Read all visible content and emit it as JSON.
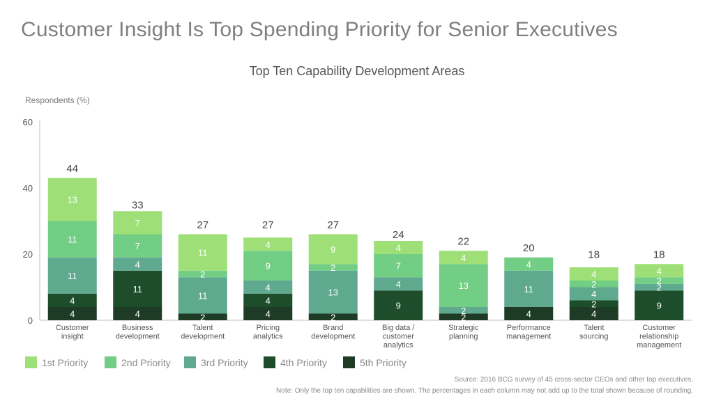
{
  "title": "Customer Insight Is Top Spending Priority for Senior Executives",
  "subtitle": "Top Ten Capability Development Areas",
  "colors": {
    "p1": "#9ee077",
    "p2": "#72cd85",
    "p3": "#5fa98f",
    "p4": "#1d4d2b",
    "p5": "#1e3b26"
  },
  "chart_data": {
    "type": "bar",
    "stacked": true,
    "title": "Top Ten Capability Development Areas",
    "ylabel": "Respondents (%)",
    "xlabel": "",
    "ylim": [
      0,
      60
    ],
    "yticks": [
      0,
      20,
      40,
      60
    ],
    "categories": [
      [
        "Customer",
        "insight"
      ],
      [
        "Business",
        "development"
      ],
      [
        "Talent",
        "development"
      ],
      [
        "Pricing",
        "analytics"
      ],
      [
        "Brand",
        "development"
      ],
      [
        "Big data /",
        "customer",
        "analytics"
      ],
      [
        "Strategic",
        "planning"
      ],
      [
        "Performance",
        "management"
      ],
      [
        "Talent",
        "sourcing"
      ],
      [
        "Customer",
        "relationship",
        "management"
      ]
    ],
    "totals": [
      44,
      33,
      27,
      27,
      27,
      24,
      22,
      20,
      18,
      18
    ],
    "series": [
      {
        "name": "5th Priority",
        "key": "p5",
        "values": [
          4,
          4,
          2,
          4,
          2,
          null,
          2,
          4,
          4,
          null
        ]
      },
      {
        "name": "4th Priority",
        "key": "p4",
        "values": [
          4,
          11,
          null,
          4,
          null,
          9,
          null,
          null,
          2,
          9
        ]
      },
      {
        "name": "3rd Priority",
        "key": "p3",
        "values": [
          11,
          4,
          11,
          4,
          13,
          4,
          2,
          11,
          4,
          2
        ]
      },
      {
        "name": "2nd Priority",
        "key": "p2",
        "values": [
          11,
          7,
          2,
          9,
          2,
          7,
          13,
          4,
          2,
          2
        ]
      },
      {
        "name": "1st Priority",
        "key": "p1",
        "values": [
          13,
          7,
          11,
          4,
          9,
          4,
          4,
          null,
          4,
          4
        ]
      }
    ],
    "legend": [
      "1st Priority",
      "2nd Priority",
      "3rd Priority",
      "4th Priority",
      "5th Priority"
    ]
  },
  "notes": {
    "source": "Source: 2016 BCG survey of 45 cross-sector CEOs and other top executives.",
    "caveat": "Note: Only the top ten capabilities are shown. The percentages in each column may not add up to the total shown because of rounding."
  }
}
